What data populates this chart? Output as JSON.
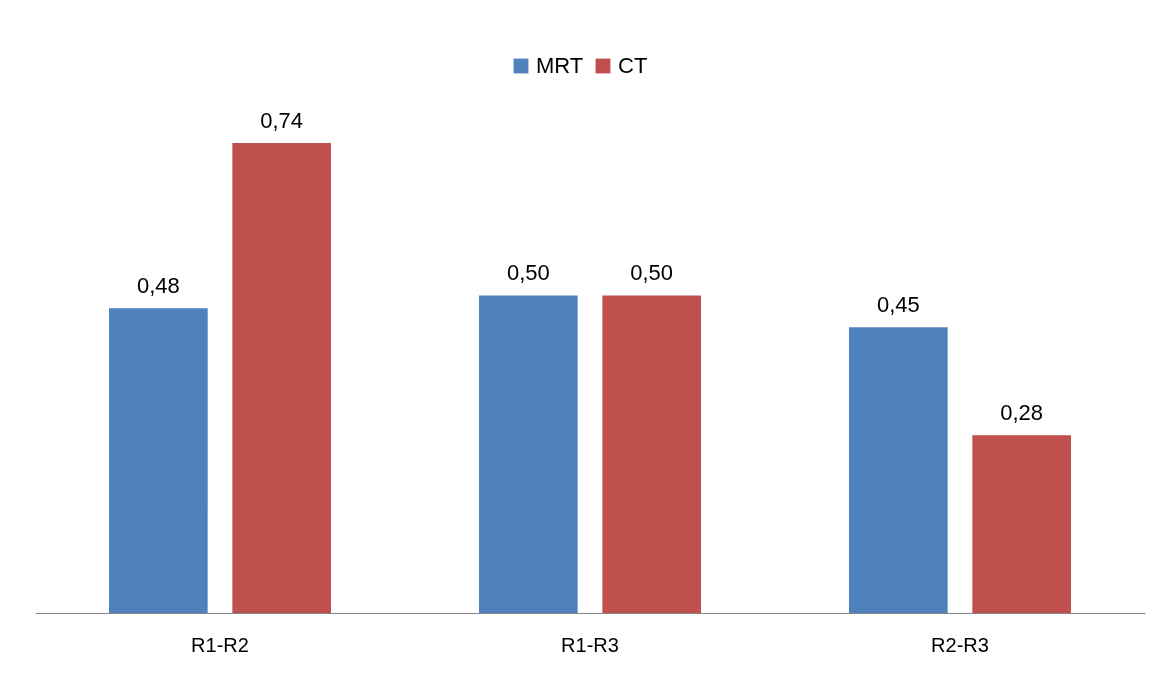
{
  "chart_data": {
    "type": "bar",
    "categories": [
      "R1-R2",
      "R1-R3",
      "R2-R3"
    ],
    "series": [
      {
        "name": "MRT",
        "color": "#4f81bd",
        "values": [
          0.48,
          0.5,
          0.45
        ],
        "value_labels": [
          "0,48",
          "0,50",
          "0,45"
        ]
      },
      {
        "name": "CT",
        "color": "#c0504d",
        "values": [
          0.74,
          0.5,
          0.28
        ],
        "value_labels": [
          "0,74",
          "0,50",
          "0,28"
        ]
      }
    ],
    "legend": "top",
    "grid": false
  }
}
